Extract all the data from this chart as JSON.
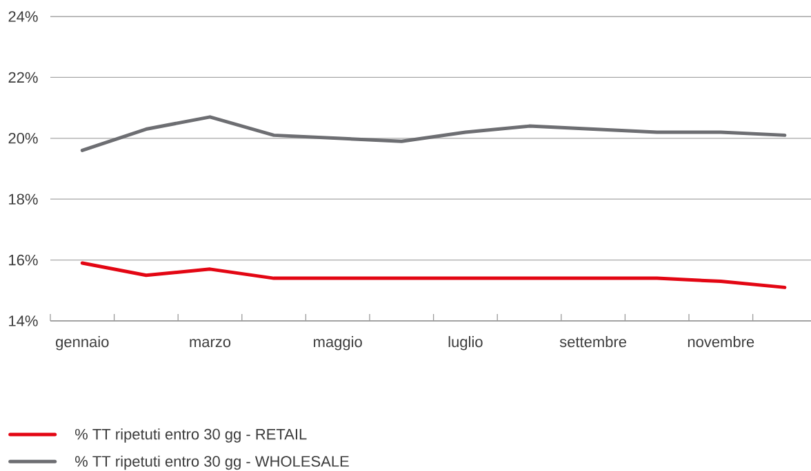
{
  "chart_data": {
    "type": "line",
    "categories": [
      "gennaio",
      null,
      "marzo",
      null,
      "maggio",
      null,
      "luglio",
      null,
      "settembre",
      null,
      "novembre",
      null
    ],
    "series": [
      {
        "name": "% TT ripetuti entro 30 gg - RETAIL",
        "color": "#e30613",
        "values": [
          15.9,
          15.5,
          15.7,
          15.4,
          15.4,
          15.4,
          15.4,
          15.4,
          15.4,
          15.4,
          15.3,
          15.1
        ]
      },
      {
        "name": "% TT ripetuti entro 30 gg - WHOLESALE",
        "color": "#6d6e72",
        "values": [
          19.6,
          20.3,
          20.7,
          20.1,
          20.0,
          19.9,
          20.2,
          20.4,
          20.3,
          20.2,
          20.2,
          20.1
        ]
      }
    ],
    "ylim": [
      14,
      24
    ],
    "yticks": [
      {
        "value": 14,
        "label": "14%"
      },
      {
        "value": 16,
        "label": "16%"
      },
      {
        "value": 18,
        "label": "18%"
      },
      {
        "value": 20,
        "label": "20%"
      },
      {
        "value": 22,
        "label": "22%"
      },
      {
        "value": 24,
        "label": "24%"
      }
    ],
    "grid": "y",
    "legend": "bottom left",
    "marker": "none",
    "line_style": "solid"
  }
}
